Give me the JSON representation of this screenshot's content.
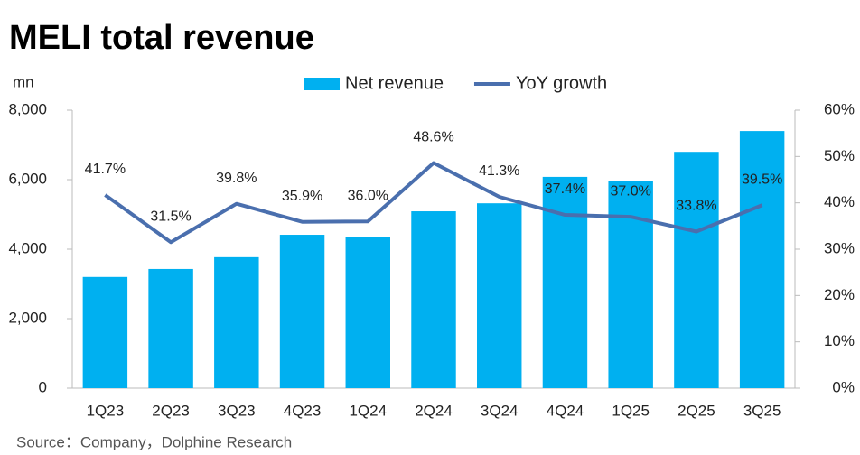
{
  "chart_data": {
    "type": "bar-line",
    "title": "MELI total revenue",
    "y_unit": "mn",
    "source": "Source：Company，Dolphine Research",
    "categories": [
      "1Q23",
      "2Q23",
      "3Q23",
      "4Q23",
      "1Q24",
      "2Q24",
      "3Q24",
      "4Q24",
      "1Q25",
      "2Q25",
      "3Q25"
    ],
    "series": [
      {
        "name": "Net revenue",
        "type": "bar",
        "color": "#00b0f0",
        "values": [
          3200,
          3430,
          3770,
          4415,
          4340,
          5090,
          5320,
          6080,
          5970,
          6800,
          7400
        ]
      },
      {
        "name": "YoY growth",
        "type": "line",
        "axis": "y2",
        "color": "#4a6fae",
        "values": [
          41.7,
          31.5,
          39.8,
          35.9,
          36.0,
          48.6,
          41.3,
          37.4,
          37.0,
          33.8,
          39.5
        ],
        "value_labels": [
          "41.7%",
          "31.5%",
          "39.8%",
          "35.9%",
          "36.0%",
          "48.6%",
          "41.3%",
          "37.4%",
          "37.0%",
          "33.8%",
          "39.5%"
        ]
      }
    ],
    "ylim": [
      0,
      8000
    ],
    "yticks": [
      0,
      {
        "value": 2000,
        "label": "2,000"
      },
      {
        "value": 4000,
        "label": "4,000"
      },
      {
        "value": 6000,
        "label": "6,000"
      },
      {
        "value": 8000,
        "label": "8,000"
      }
    ],
    "y2lim": [
      0,
      60
    ],
    "y2ticks": [
      {
        "value": 0,
        "label": "0%"
      },
      {
        "value": 10,
        "label": "10%"
      },
      {
        "value": 20,
        "label": "20%"
      },
      {
        "value": 30,
        "label": "30%"
      },
      {
        "value": 40,
        "label": "40%"
      },
      {
        "value": 50,
        "label": "50%"
      },
      {
        "value": 60,
        "label": "60%"
      }
    ]
  }
}
